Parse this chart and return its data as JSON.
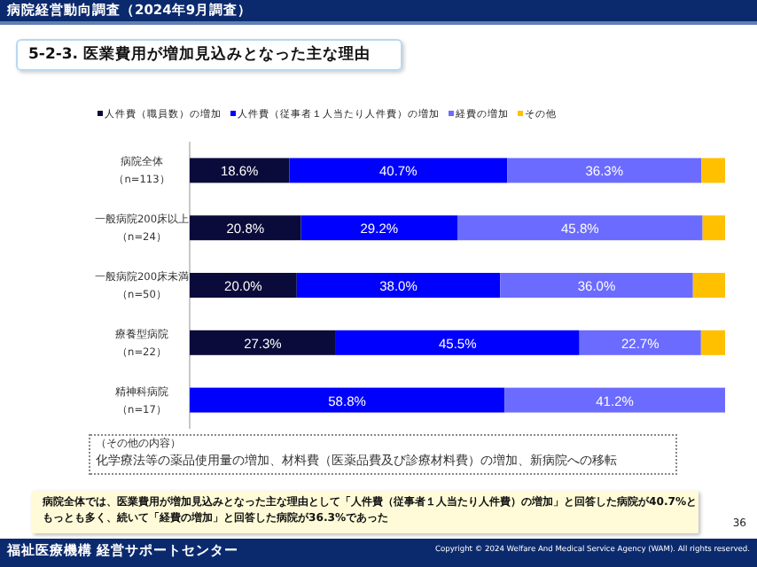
{
  "chart_data": {
    "type": "bar",
    "orientation": "horizontal",
    "stacked": true,
    "legend": "top",
    "title": "病院経営動向調査（2024年9月調査）",
    "subtitle": "5-2-3.  医業費用が増加見込みとなった主な理由",
    "categories": [
      "病院全体（n=113）",
      "一般病院200床以上（n=24）",
      "一般病院200床未満（n=50）",
      "療養型病院（n=22）",
      "精神科病院（n=17）"
    ],
    "series": [
      {
        "name": "人件費（職員数）の増加",
        "color": "#0b0b3b",
        "values": [
          18.6,
          20.8,
          20.0,
          27.3,
          0
        ],
        "value_labels": [
          "18.6%",
          "20.8%",
          "20.0%",
          "27.3%",
          null
        ]
      },
      {
        "name": "人件費（従事者１人当たり人件費）の増加",
        "color": "#0000ff",
        "values": [
          40.7,
          29.2,
          38.0,
          45.5,
          58.8
        ],
        "value_labels": [
          "40.7%",
          "29.2%",
          "38.0%",
          "45.5%",
          "58.8%"
        ]
      },
      {
        "name": "経費の増加",
        "color": "#6b6bff",
        "values": [
          36.3,
          45.8,
          36.0,
          22.7,
          41.2
        ],
        "value_labels": [
          "36.3%",
          "45.8%",
          "36.0%",
          "22.7%",
          "41.2%"
        ]
      },
      {
        "name": "その他",
        "color": "#ffc000",
        "values": [
          4.4,
          4.2,
          6.0,
          4.5,
          0
        ],
        "value_labels": [
          null,
          null,
          null,
          null,
          null
        ]
      }
    ],
    "annotations": [
      "（その他の内容）",
      "化学療法等の薬品使用量の増加、材料費（医薬品費及び診療材料費）の増加、新病院への移転",
      "病院全体では、医業費用が増加見込みとなった主な理由として「人件費（従事者１人当たり人件費）の増加」と回答した病院が40.7%ともっとも多く、続いて「経費の増加」と回答した病院が36.3%であった",
      "36",
      "福祉医療機構 経営サポートセンター",
      "Copyright © 2024 Welfare And Medical Service Agency (WAM). All rights reserved."
    ]
  }
}
